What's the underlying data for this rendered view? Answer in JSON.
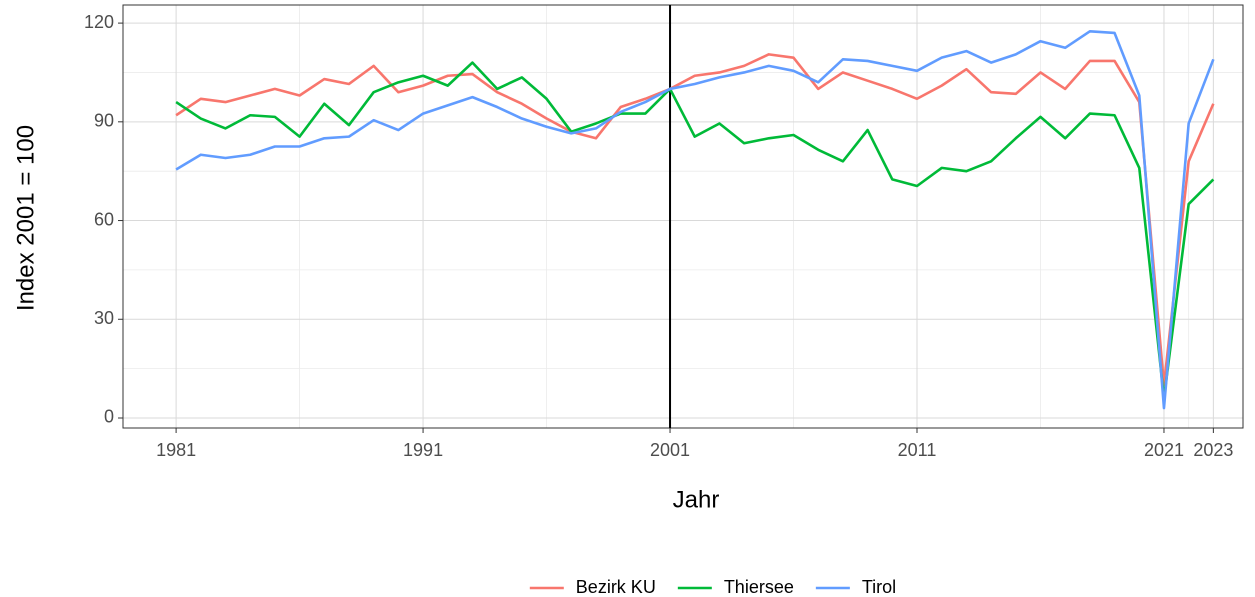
{
  "chart_data": {
    "type": "line",
    "x_label": "Jahr",
    "y_label": "Index 2001 = 100",
    "x": [
      1981,
      1982,
      1983,
      1984,
      1985,
      1986,
      1987,
      1988,
      1989,
      1990,
      1991,
      1992,
      1993,
      1994,
      1995,
      1996,
      1997,
      1998,
      1999,
      2000,
      2001,
      2002,
      2003,
      2004,
      2005,
      2006,
      2007,
      2008,
      2009,
      2010,
      2011,
      2012,
      2013,
      2014,
      2015,
      2016,
      2017,
      2018,
      2019,
      2020,
      2021,
      2022,
      2023
    ],
    "series": [
      {
        "name": "Bezirk KU",
        "color": "#f8766d",
        "values": [
          92,
          97,
          96,
          98,
          100,
          98,
          103,
          101.5,
          107,
          99,
          101,
          104,
          104.5,
          99,
          95.5,
          91,
          87,
          85,
          94.5,
          97,
          100,
          104,
          105,
          107,
          110.5,
          109.5,
          100,
          105,
          102.5,
          100,
          97,
          101,
          106,
          99,
          98.5,
          105,
          100,
          108.5,
          108.5,
          96,
          10,
          78,
          95.5
        ]
      },
      {
        "name": "Thiersee",
        "color": "#00ba38",
        "values": [
          96,
          91,
          88,
          92,
          91.5,
          85.5,
          95.5,
          89,
          99,
          102,
          104,
          101,
          108,
          100,
          103.5,
          97,
          87,
          89.5,
          92.5,
          92.5,
          100,
          85.5,
          89.5,
          83.5,
          85,
          86,
          81.5,
          78,
          87.5,
          72.5,
          70.5,
          76,
          75,
          78,
          85,
          91.5,
          85,
          92.5,
          92,
          76,
          6,
          65,
          72.5
        ]
      },
      {
        "name": "Tirol",
        "color": "#619cff",
        "values": [
          75.5,
          80,
          79,
          80,
          82.5,
          82.5,
          85,
          85.5,
          90.5,
          87.5,
          92.5,
          95,
          97.5,
          94.5,
          91,
          88.5,
          86.5,
          88,
          93,
          96,
          100,
          101.5,
          103.5,
          105,
          107,
          105.5,
          102,
          109,
          108.5,
          107,
          105.5,
          109.5,
          111.5,
          108,
          110.5,
          114.5,
          112.5,
          117.5,
          117,
          98,
          3,
          89.5,
          109
        ]
      }
    ],
    "xlim": [
      1978.85,
      2024.2
    ],
    "xticks": [
      1981,
      1991,
      2001,
      2011,
      2021,
      2023
    ],
    "ylim": [
      -3.04,
      125.5
    ],
    "yticks": [
      0,
      30,
      60,
      90,
      120
    ],
    "vline": 2001,
    "grid": true,
    "legend": "bottom"
  }
}
